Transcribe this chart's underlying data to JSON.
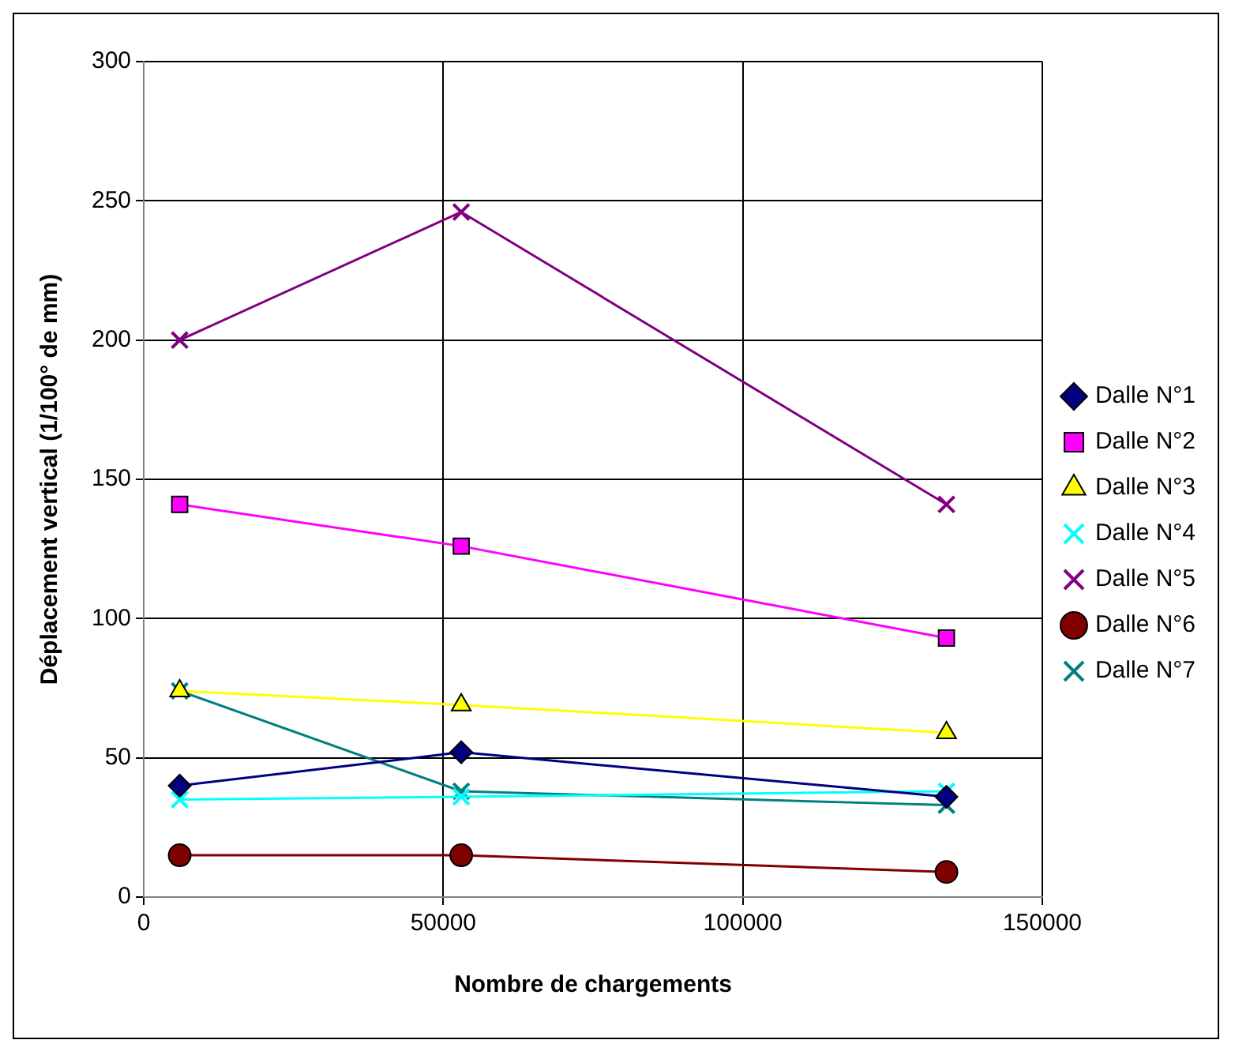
{
  "chart_data": {
    "type": "line",
    "xlabel": "Nombre de chargements",
    "ylabel": "Déplacement vertical (1/100° de mm)",
    "xlim": [
      0,
      150000
    ],
    "xticks": [
      0,
      50000,
      100000,
      150000
    ],
    "ylim": [
      0,
      300
    ],
    "yticks": [
      0,
      50,
      100,
      150,
      200,
      250,
      300
    ],
    "grid": true,
    "legend": "right",
    "line_style": "solid",
    "series": [
      {
        "name": "Dalle N°1",
        "color": "#000080",
        "marker": "diamond",
        "x": [
          6000,
          53000,
          134000
        ],
        "values": [
          40,
          52,
          36
        ]
      },
      {
        "name": "Dalle N°2",
        "color": "#ff00ff",
        "marker": "square",
        "x": [
          6000,
          53000,
          134000
        ],
        "values": [
          141,
          126,
          93
        ]
      },
      {
        "name": "Dalle N°3",
        "color": "#ffff00",
        "marker": "triangle",
        "x": [
          6000,
          53000,
          134000
        ],
        "values": [
          74,
          69,
          59
        ]
      },
      {
        "name": "Dalle N°4",
        "color": "#00ffff",
        "marker": "cross",
        "x": [
          6000,
          53000,
          134000
        ],
        "values": [
          35,
          36,
          38
        ]
      },
      {
        "name": "Dalle N°5",
        "color": "#800080",
        "marker": "cross",
        "x": [
          6000,
          53000,
          134000
        ],
        "values": [
          200,
          246,
          141
        ]
      },
      {
        "name": "Dalle N°6",
        "color": "#800000",
        "marker": "circle",
        "x": [
          6000,
          53000,
          134000
        ],
        "values": [
          15,
          15,
          9
        ]
      },
      {
        "name": "Dalle N°7",
        "color": "#008080",
        "marker": "cross",
        "x": [
          6000,
          53000,
          134000
        ],
        "values": [
          74,
          38,
          33
        ]
      }
    ]
  }
}
